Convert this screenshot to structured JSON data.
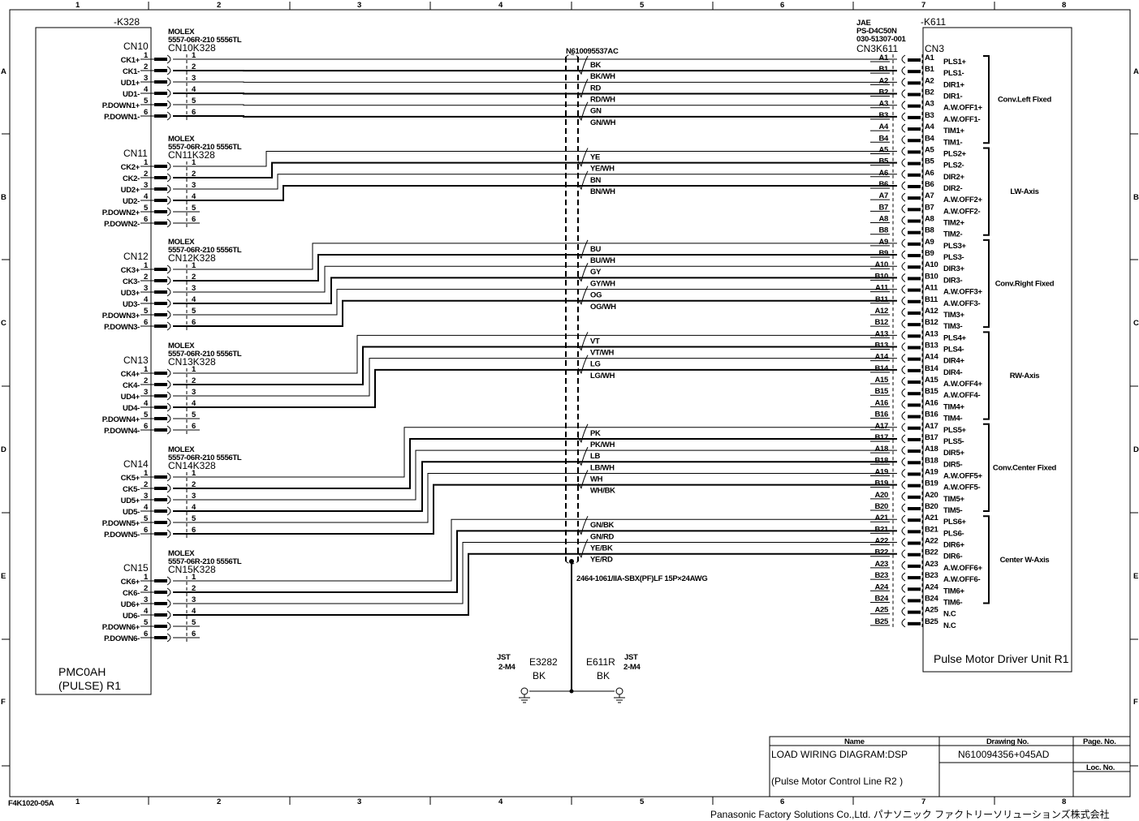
{
  "frame": {
    "columns": [
      "1",
      "2",
      "3",
      "4",
      "5",
      "6",
      "7",
      "8"
    ],
    "rows": [
      "A",
      "B",
      "C",
      "D",
      "E",
      "F"
    ],
    "sheet_code": "F4K1020-05A",
    "company": "Panasonic Factory Solutions Co.,Ltd. パナソニック ファクトリーソリューションズ株式会社"
  },
  "left_unit": {
    "ref": "-K328",
    "name_line1": "PMC0AH",
    "name_line2": "(PULSE) R1",
    "connectors": [
      {
        "cn": "CN10",
        "maker": "MOLEX",
        "part": "5557-06R-210   5556TL",
        "mate": "CN10K328",
        "signals": [
          "CK1+",
          "CK1-",
          "UD1+",
          "UD1-",
          "P.DOWN1+",
          "P.DOWN1-"
        ],
        "wired": 6
      },
      {
        "cn": "CN11",
        "maker": "MOLEX",
        "part": "5557-06R-210   5556TL",
        "mate": "CN11K328",
        "signals": [
          "CK2+",
          "CK2-",
          "UD2+",
          "UD2-",
          "P.DOWN2+",
          "P.DOWN2-"
        ],
        "wired": 4
      },
      {
        "cn": "CN12",
        "maker": "MOLEX",
        "part": "5557-06R-210   5556TL",
        "mate": "CN12K328",
        "signals": [
          "CK3+",
          "CK3-",
          "UD3+",
          "UD3-",
          "P.DOWN3+",
          "P.DOWN3-"
        ],
        "wired": 6
      },
      {
        "cn": "CN13",
        "maker": "MOLEX",
        "part": "5557-06R-210   5556TL",
        "mate": "CN13K328",
        "signals": [
          "CK4+",
          "CK4-",
          "UD4+",
          "UD4-",
          "P.DOWN4+",
          "P.DOWN4-"
        ],
        "wired": 4
      },
      {
        "cn": "CN14",
        "maker": "MOLEX",
        "part": "5557-06R-210   5556TL",
        "mate": "CN14K328",
        "signals": [
          "CK5+",
          "CK5-",
          "UD5+",
          "UD5-",
          "P.DOWN5+",
          "P.DOWN5-"
        ],
        "wired": 6
      },
      {
        "cn": "CN15",
        "maker": "MOLEX",
        "part": "5557-06R-210   5556TL",
        "mate": "CN15K328",
        "signals": [
          "CK6+",
          "CK6-",
          "UD6+",
          "UD6-",
          "P.DOWN6+",
          "P.DOWN6-"
        ],
        "wired": 4
      }
    ]
  },
  "right_unit": {
    "ref": "-K611",
    "name": "Pulse Motor Driver Unit R1",
    "maker": "JAE",
    "part1": "PS-D4C50N",
    "part2": "030-51307-001",
    "mate": "CN3K611",
    "cn": "CN3",
    "pins": [
      {
        "pin": "A1",
        "signal": "PLS1+"
      },
      {
        "pin": "B1",
        "signal": "PLS1-"
      },
      {
        "pin": "A2",
        "signal": "DIR1+"
      },
      {
        "pin": "B2",
        "signal": "DIR1-"
      },
      {
        "pin": "A3",
        "signal": "A.W.OFF1+"
      },
      {
        "pin": "B3",
        "signal": "A.W.OFF1-"
      },
      {
        "pin": "A4",
        "signal": "TIM1+"
      },
      {
        "pin": "B4",
        "signal": "TIM1-"
      },
      {
        "pin": "A5",
        "signal": "PLS2+"
      },
      {
        "pin": "B5",
        "signal": "PLS2-"
      },
      {
        "pin": "A6",
        "signal": "DIR2+"
      },
      {
        "pin": "B6",
        "signal": "DIR2-"
      },
      {
        "pin": "A7",
        "signal": "A.W.OFF2+"
      },
      {
        "pin": "B7",
        "signal": "A.W.OFF2-"
      },
      {
        "pin": "A8",
        "signal": "TIM2+"
      },
      {
        "pin": "B8",
        "signal": "TIM2-"
      },
      {
        "pin": "A9",
        "signal": "PLS3+"
      },
      {
        "pin": "B9",
        "signal": "PLS3-"
      },
      {
        "pin": "A10",
        "signal": "DIR3+"
      },
      {
        "pin": "B10",
        "signal": "DIR3-"
      },
      {
        "pin": "A11",
        "signal": "A.W.OFF3+"
      },
      {
        "pin": "B11",
        "signal": "A.W.OFF3-"
      },
      {
        "pin": "A12",
        "signal": "TIM3+"
      },
      {
        "pin": "B12",
        "signal": "TIM3-"
      },
      {
        "pin": "A13",
        "signal": "PLS4+"
      },
      {
        "pin": "B13",
        "signal": "PLS4-"
      },
      {
        "pin": "A14",
        "signal": "DIR4+"
      },
      {
        "pin": "B14",
        "signal": "DIR4-"
      },
      {
        "pin": "A15",
        "signal": "A.W.OFF4+"
      },
      {
        "pin": "B15",
        "signal": "A.W.OFF4-"
      },
      {
        "pin": "A16",
        "signal": "TIM4+"
      },
      {
        "pin": "B16",
        "signal": "TIM4-"
      },
      {
        "pin": "A17",
        "signal": "PLS5+"
      },
      {
        "pin": "B17",
        "signal": "PLS5-"
      },
      {
        "pin": "A18",
        "signal": "DIR5+"
      },
      {
        "pin": "B18",
        "signal": "DIR5-"
      },
      {
        "pin": "A19",
        "signal": "A.W.OFF5+"
      },
      {
        "pin": "B19",
        "signal": "A.W.OFF5-"
      },
      {
        "pin": "A20",
        "signal": "TIM5+"
      },
      {
        "pin": "B20",
        "signal": "TIM5-"
      },
      {
        "pin": "A21",
        "signal": "PLS6+"
      },
      {
        "pin": "B21",
        "signal": "PLS6-"
      },
      {
        "pin": "A22",
        "signal": "DIR6+"
      },
      {
        "pin": "B22",
        "signal": "DIR6-"
      },
      {
        "pin": "A23",
        "signal": "A.W.OFF6+"
      },
      {
        "pin": "B23",
        "signal": "A.W.OFF6-"
      },
      {
        "pin": "A24",
        "signal": "TIM6+"
      },
      {
        "pin": "B24",
        "signal": "TIM6-"
      },
      {
        "pin": "A25",
        "signal": "N.C"
      },
      {
        "pin": "B25",
        "signal": "N.C"
      }
    ],
    "groups": [
      "Conv.Left Fixed",
      "LW-Axis",
      "Conv.Right Fixed",
      "RW-Axis",
      "Conv.Center Fixed",
      "Center W-Axis"
    ]
  },
  "cable": {
    "part_no": "N610095537AC",
    "spec": "2464-1061/IIA-SBX(PF)LF 15P×24AWG",
    "wire_colors": [
      "BK",
      "BK/WH",
      "RD",
      "RD/WH",
      "GN",
      "GN/WH",
      "YE",
      "YE/WH",
      "BN",
      "BN/WH",
      "BU",
      "BU/WH",
      "GY",
      "GY/WH",
      "OG",
      "OG/WH",
      "VT",
      "VT/WH",
      "LG",
      "LG/WH",
      "PK",
      "PK/WH",
      "LB",
      "LB/WH",
      "WH",
      "WH/BK",
      "GN/BK",
      "GN/RD",
      "YE/BK",
      "YE/RD"
    ]
  },
  "ground": {
    "left": {
      "maker": "JST",
      "part": "2-M4",
      "ref": "E3282",
      "color": "BK"
    },
    "right": {
      "maker": "JST",
      "part": "2-M4",
      "ref": "E611R",
      "color": "BK"
    }
  },
  "title_block": {
    "name_header": "Name",
    "drawing_header": "Drawing No.",
    "page_header": "Page. No.",
    "loc_header": "Loc. No.",
    "name_line1": "LOAD WIRING DIAGRAM:DSP",
    "name_line2": "(Pulse Motor Control Line R2 )",
    "drawing_no": "N610094356+045AD"
  }
}
